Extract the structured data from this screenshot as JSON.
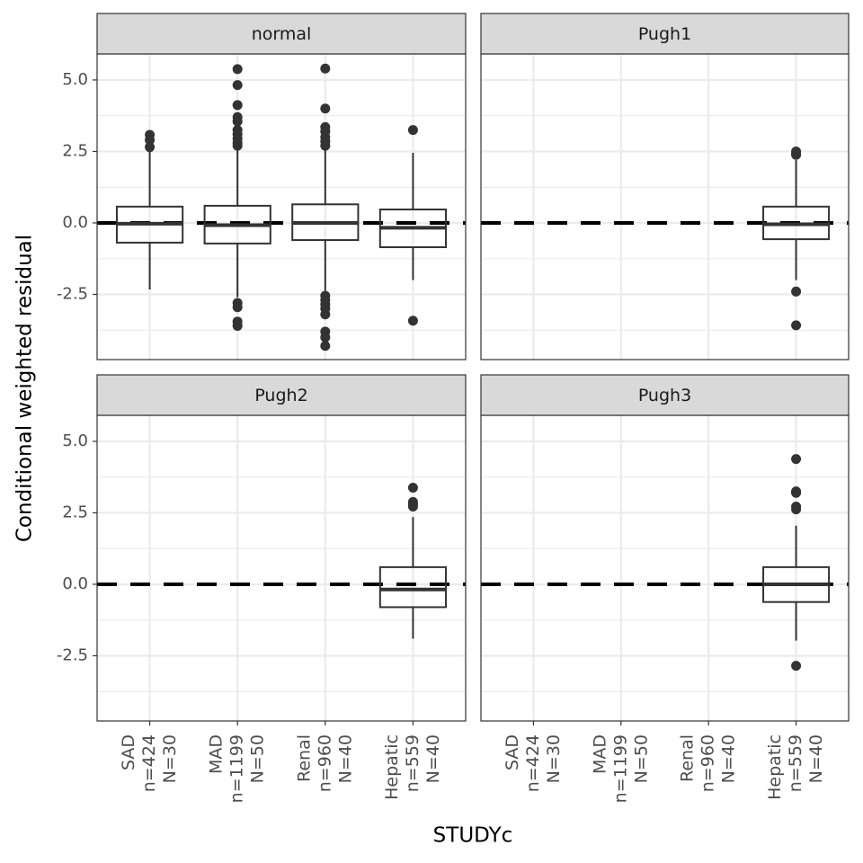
{
  "chart_data": {
    "type": "box",
    "xlabel": "STUDYc",
    "ylabel": "Conditional weighted residual",
    "categories": [
      [
        "SAD",
        "n=424",
        "N=30"
      ],
      [
        "MAD",
        "n=1199",
        "N=50"
      ],
      [
        "Renal",
        "n=960",
        "N=40"
      ],
      [
        "Hepatic",
        "n=559",
        "N=40"
      ]
    ],
    "ylim": [
      -4.78,
      5.91
    ],
    "yticks": [
      -2.5,
      {
        "value": 0,
        "label": "0.0"
      },
      2.5,
      {
        "value": 5,
        "label": "5.0"
      }
    ],
    "minor_yticks": [
      -3.75,
      -1.25,
      1.25,
      3.75
    ],
    "grid": true,
    "hline": 0,
    "color": "#333333",
    "facets": [
      {
        "title": "normal",
        "boxes": [
          {
            "whisker_low": -2.33,
            "q1": -0.69,
            "median": -0.03,
            "q3": 0.57,
            "whisker_high": 2.55,
            "outliers": [
              3.08,
              2.9,
              2.65
            ]
          },
          {
            "whisker_low": -2.6,
            "q1": -0.72,
            "median": -0.08,
            "q3": 0.6,
            "whisker_high": 2.6,
            "outliers": [
              5.38,
              4.82,
              4.12,
              3.7,
              3.55,
              3.25,
              3.1,
              2.95,
              2.8,
              2.7,
              -2.8,
              -2.95,
              -3.45,
              -3.6
            ]
          },
          {
            "whisker_low": -2.4,
            "q1": -0.6,
            "median": 0.0,
            "q3": 0.65,
            "whisker_high": 2.6,
            "outliers": [
              5.4,
              4.0,
              3.35,
              3.2,
              3.0,
              2.85,
              2.7,
              -2.55,
              -2.7,
              -2.85,
              -3.0,
              -3.2,
              -3.8,
              -4.0,
              -4.3
            ]
          },
          {
            "whisker_low": -2.0,
            "q1": -0.85,
            "median": -0.17,
            "q3": 0.47,
            "whisker_high": 2.45,
            "outliers": [
              3.25,
              -3.42
            ]
          }
        ]
      },
      {
        "title": "Pugh1",
        "boxes": [
          null,
          null,
          null,
          {
            "whisker_low": -2.0,
            "q1": -0.57,
            "median": -0.05,
            "q3": 0.57,
            "whisker_high": 2.2,
            "outliers": [
              2.5,
              2.42,
              2.38,
              -2.4,
              -3.58
            ]
          }
        ]
      },
      {
        "title": "Pugh2",
        "boxes": [
          null,
          null,
          null,
          {
            "whisker_low": -1.9,
            "q1": -0.8,
            "median": -0.18,
            "q3": 0.6,
            "whisker_high": 2.35,
            "outliers": [
              3.38,
              2.88,
              2.8,
              2.72
            ]
          }
        ]
      },
      {
        "title": "Pugh3",
        "boxes": [
          null,
          null,
          null,
          {
            "whisker_low": -1.97,
            "q1": -0.62,
            "median": 0.0,
            "q3": 0.6,
            "whisker_high": 2.05,
            "outliers": [
              4.38,
              3.25,
              3.2,
              2.72,
              2.62,
              -2.85
            ]
          }
        ]
      }
    ]
  }
}
